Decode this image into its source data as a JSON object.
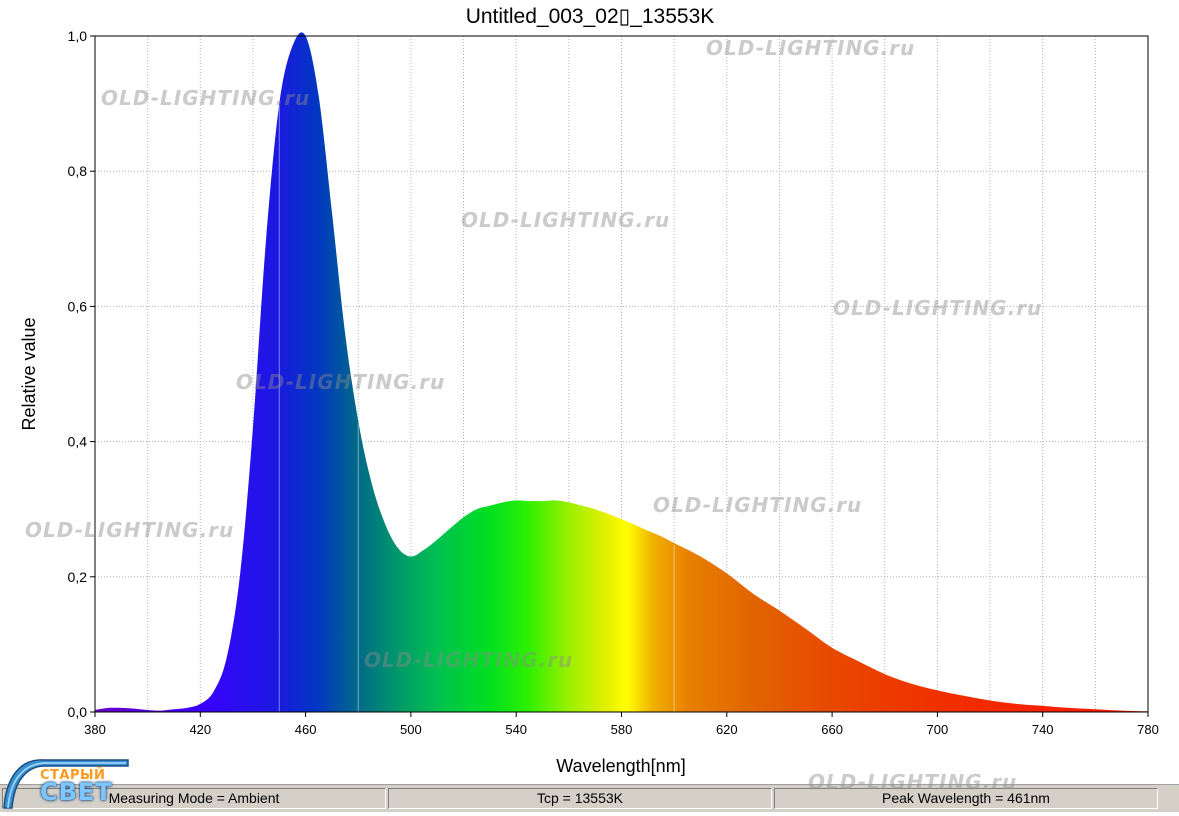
{
  "chart_data": {
    "type": "area",
    "title": "Untitled_003_02▯_13553K",
    "xlabel": "Wavelength[nm]",
    "ylabel": "Relative value",
    "xlim": [
      380,
      780
    ],
    "ylim": [
      0,
      1
    ],
    "x_ticks": [
      "380",
      "420",
      "460",
      "500",
      "540",
      "580",
      "620",
      "660",
      "700",
      "740",
      "780"
    ],
    "y_ticks": [
      "0,0",
      "0,2",
      "0,4",
      "0,6",
      "0,8",
      "1,0"
    ],
    "grid": true,
    "fill": "spectral colors by wavelength",
    "x": [
      380,
      385,
      390,
      395,
      400,
      405,
      410,
      415,
      420,
      425,
      430,
      435,
      440,
      445,
      450,
      455,
      460,
      465,
      470,
      475,
      480,
      485,
      490,
      495,
      500,
      505,
      510,
      515,
      520,
      525,
      530,
      535,
      540,
      545,
      550,
      555,
      560,
      565,
      570,
      575,
      580,
      585,
      590,
      595,
      600,
      610,
      620,
      630,
      640,
      650,
      660,
      670,
      680,
      690,
      700,
      710,
      720,
      730,
      740,
      750,
      760,
      770,
      780
    ],
    "y": [
      0.003,
      0.006,
      0.006,
      0.005,
      0.003,
      0.002,
      0.004,
      0.006,
      0.012,
      0.03,
      0.08,
      0.2,
      0.42,
      0.7,
      0.9,
      0.985,
      1.0,
      0.91,
      0.74,
      0.56,
      0.43,
      0.34,
      0.28,
      0.243,
      0.23,
      0.24,
      0.255,
      0.272,
      0.288,
      0.3,
      0.305,
      0.31,
      0.313,
      0.312,
      0.312,
      0.313,
      0.31,
      0.305,
      0.3,
      0.293,
      0.285,
      0.277,
      0.268,
      0.26,
      0.25,
      0.23,
      0.205,
      0.175,
      0.15,
      0.123,
      0.095,
      0.075,
      0.056,
      0.042,
      0.032,
      0.024,
      0.017,
      0.012,
      0.009,
      0.006,
      0.004,
      0.002,
      0.001
    ]
  },
  "status_bar": {
    "mode": "Measuring Mode = Ambient",
    "tcp": "Tcp = 13553K",
    "peak": "Peak Wavelength = 461nm"
  },
  "watermark": "OLD-LIGHTING.ru",
  "logo": {
    "top_text": "СТАРЫЙ",
    "main_text": "СВЕТ"
  }
}
